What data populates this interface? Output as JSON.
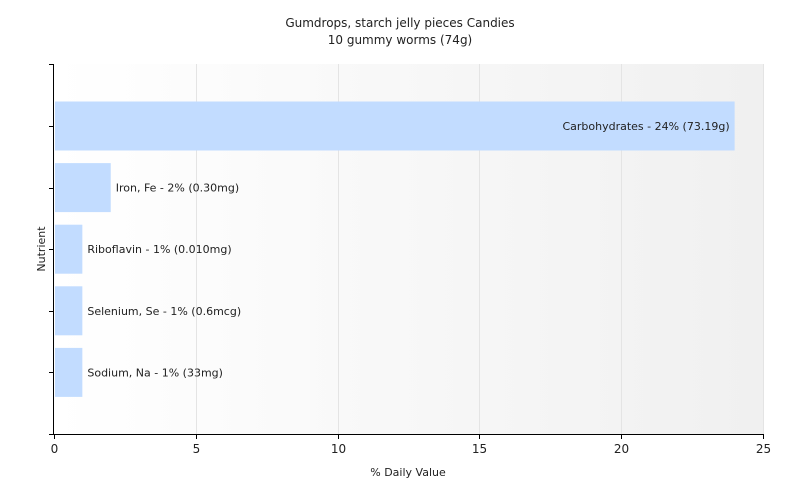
{
  "chart_data": {
    "type": "bar",
    "orientation": "horizontal",
    "title": "Gumdrops, starch jelly pieces Candies",
    "subtitle": "10 gummy worms (74g)",
    "xlabel": "% Daily Value",
    "ylabel": "Nutrient",
    "xlim": [
      0,
      25
    ],
    "xticks": [
      0,
      5,
      10,
      15,
      20,
      25
    ],
    "grid": true,
    "legend": "none",
    "bar_color": "#c2dcff",
    "categories": [
      "Carbohydrates",
      "Iron, Fe",
      "Riboflavin",
      "Selenium, Se",
      "Sodium, Na"
    ],
    "values": [
      24,
      2,
      1,
      1,
      1
    ],
    "labels": [
      "Carbohydrates - 24% (73.19g)",
      "Iron, Fe - 2% (0.30mg)",
      "Riboflavin - 1% (0.010mg)",
      "Selenium, Se - 1% (0.6mcg)",
      "Sodium, Na - 1% (33mg)"
    ]
  }
}
